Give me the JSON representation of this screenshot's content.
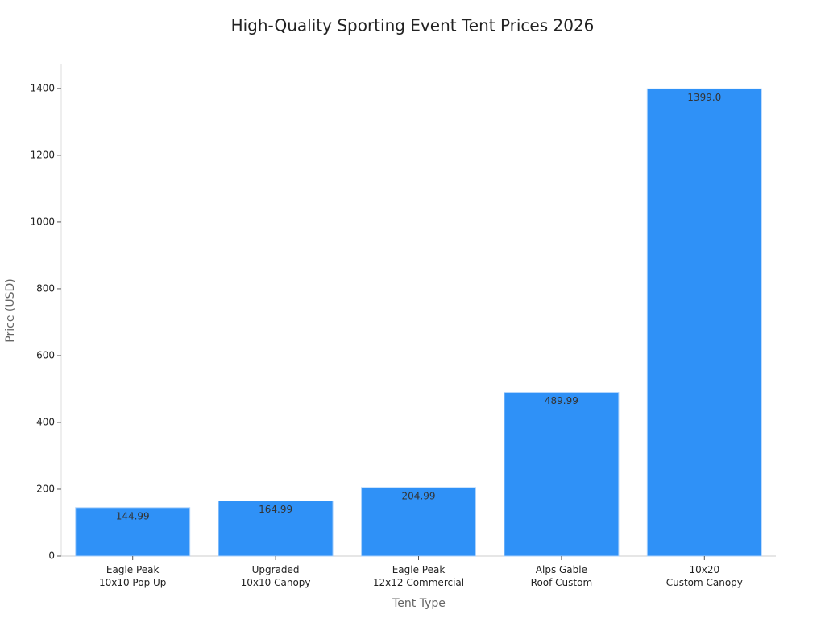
{
  "chart_data": {
    "type": "bar",
    "title": "High-Quality Sporting Event Tent Prices 2026",
    "x_label": "Tent Type",
    "y_label": "Price (USD)",
    "categories": [
      [
        "Eagle Peak",
        "10x10 Pop Up"
      ],
      [
        "Upgraded",
        "10x10 Canopy"
      ],
      [
        "Eagle Peak",
        "12x12 Commercial"
      ],
      [
        "Alps Gable",
        "Roof Custom"
      ],
      [
        "10x20",
        "Custom Canopy"
      ]
    ],
    "values": [
      144.99,
      164.99,
      204.99,
      489.99,
      1399
    ],
    "value_labels": [
      "144.99",
      "164.99",
      "204.99",
      "489.99",
      "1399.0"
    ],
    "color": "#2f91f7",
    "ylim": [
      0,
      1472
    ],
    "yticks": [
      0,
      200,
      400,
      600,
      800,
      1000,
      1200,
      1400
    ],
    "grid": false
  }
}
